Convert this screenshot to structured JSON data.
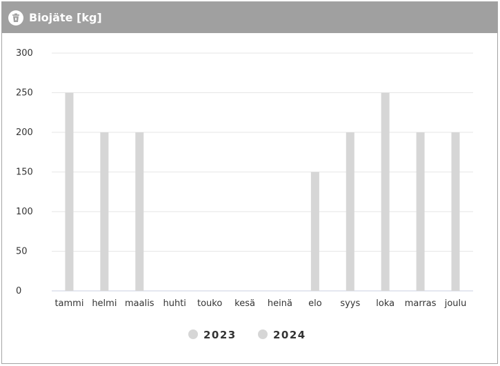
{
  "header": {
    "title": "Biojäte [kg]",
    "icon": "compost-bin-icon"
  },
  "chart_data": {
    "type": "bar",
    "categories": [
      "tammi",
      "helmi",
      "maalis",
      "huhti",
      "touko",
      "kesä",
      "heinä",
      "elo",
      "syys",
      "loka",
      "marras",
      "joulu"
    ],
    "series": [
      {
        "name": "2023",
        "values": [
          250,
          200,
          200,
          0,
          0,
          0,
          0,
          150,
          200,
          250,
          200,
          200
        ],
        "color": "#d6d6d6"
      },
      {
        "name": "2024",
        "values": [
          0,
          0,
          0,
          0,
          0,
          0,
          0,
          0,
          0,
          0,
          0,
          0
        ],
        "color": "#d6d6d6"
      }
    ],
    "yticks": [
      0,
      50,
      100,
      150,
      200,
      250,
      300
    ],
    "ylim": [
      0,
      300
    ],
    "grid": true,
    "legend_position": "bottom-center"
  }
}
